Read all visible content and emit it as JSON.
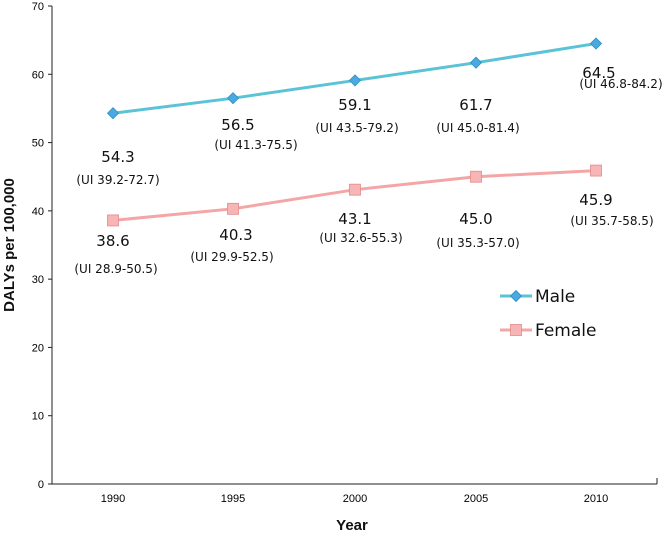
{
  "chart_data": {
    "type": "line",
    "title": "",
    "xlabel": "Year",
    "ylabel": "DALYs per 100,000",
    "categories": [
      "1990",
      "1995",
      "2000",
      "2005",
      "2010"
    ],
    "ylim": [
      0,
      70
    ],
    "yticks": [
      "0",
      "10",
      "20",
      "30",
      "40",
      "50",
      "60",
      "70"
    ],
    "grid": false,
    "legend_position": "right",
    "series": [
      {
        "name": "Male",
        "color": "#5bc3d6",
        "marker_fill": "#4aa9e0",
        "values": [
          54.3,
          56.5,
          59.1,
          61.7,
          64.5
        ],
        "value_labels": [
          "54.3",
          "56.5",
          "59.1",
          "61.7",
          "64.5"
        ],
        "ui_labels": [
          "(UI 39.2-72.7)",
          "(UI 41.3-75.5)",
          "(UI 43.5-79.2)",
          "(UI 45.0-81.4)",
          "(UI 46.8-84.2)"
        ]
      },
      {
        "name": "Female",
        "color": "#f4a6a6",
        "marker_fill": "#f7b5b5",
        "values": [
          38.6,
          40.3,
          43.1,
          45.0,
          45.9
        ],
        "value_labels": [
          "38.6",
          "40.3",
          "43.1",
          "45.0",
          "45.9"
        ],
        "ui_labels": [
          "(UI 28.9-50.5)",
          "(UI 29.9-52.5)",
          "(UI 32.6-55.3)",
          "(UI 35.3-57.0)",
          "(UI 35.7-58.5)"
        ]
      }
    ]
  }
}
